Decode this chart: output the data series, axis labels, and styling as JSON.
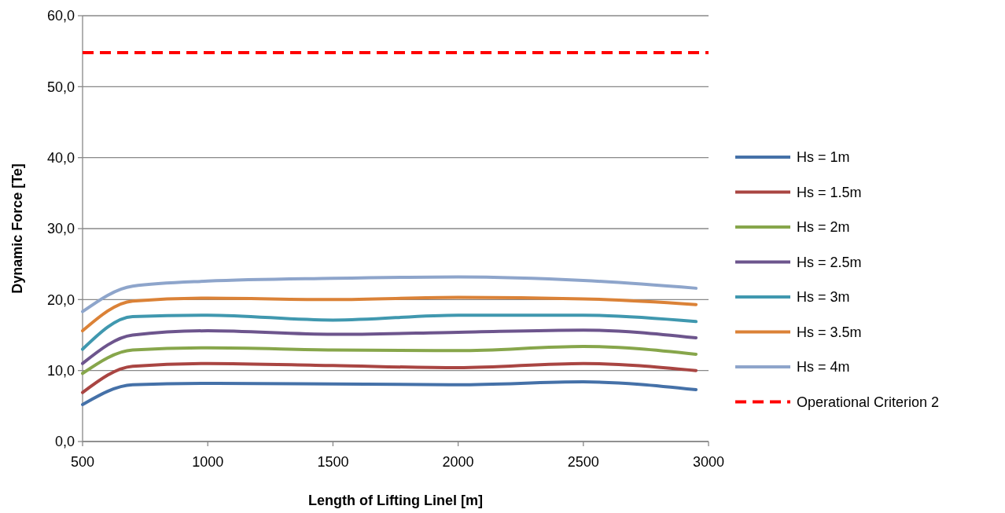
{
  "chart_data": {
    "type": "line",
    "xlabel": "Length of Lifting Linel [m]",
    "ylabel": "Dynamic Force [Te]",
    "x": [
      500,
      700,
      1000,
      1500,
      2000,
      2500,
      2950
    ],
    "xlim": [
      500,
      3000
    ],
    "xticks": [
      500,
      1000,
      1500,
      2000,
      2500,
      3000
    ],
    "ylim": [
      0,
      60
    ],
    "yticks": [
      {
        "value": 0,
        "label": "0,0"
      },
      {
        "value": 10,
        "label": "10,0"
      },
      {
        "value": 20,
        "label": "20,0"
      },
      {
        "value": 30,
        "label": "30,0"
      },
      {
        "value": 40,
        "label": "40,0"
      },
      {
        "value": 50,
        "label": "50,0"
      },
      {
        "value": 60,
        "label": "60,0"
      }
    ],
    "grid": "y",
    "legend": "right",
    "marker": "none",
    "line_style": "solid",
    "series": [
      {
        "name": "Hs = 1m",
        "color": "#4571a8",
        "values": [
          5.2,
          8.0,
          8.2,
          8.1,
          8.0,
          8.4,
          7.3
        ]
      },
      {
        "name": "Hs = 1.5m",
        "color": "#a94542",
        "values": [
          6.9,
          10.6,
          11.0,
          10.7,
          10.4,
          11.0,
          10.0
        ]
      },
      {
        "name": "Hs = 2m",
        "color": "#87a64b",
        "values": [
          9.6,
          12.9,
          13.2,
          12.9,
          12.8,
          13.4,
          12.3
        ]
      },
      {
        "name": "Hs = 2.5m",
        "color": "#6d558d",
        "values": [
          11.0,
          15.0,
          15.6,
          15.1,
          15.4,
          15.7,
          14.6
        ]
      },
      {
        "name": "Hs = 3m",
        "color": "#4098af",
        "values": [
          13.0,
          17.6,
          17.8,
          17.1,
          17.8,
          17.8,
          16.9
        ]
      },
      {
        "name": "Hs = 3.5m",
        "color": "#db8237",
        "values": [
          15.6,
          19.8,
          20.2,
          20.0,
          20.3,
          20.1,
          19.3
        ]
      },
      {
        "name": "Hs = 4m",
        "color": "#8ea5cb",
        "values": [
          18.3,
          21.9,
          22.6,
          23.0,
          23.2,
          22.7,
          21.6
        ]
      }
    ],
    "ref_lines": [
      {
        "axis": "y",
        "value": 54.8,
        "label": "Operational Criterion 2",
        "color": "#ff0000",
        "line_style": "dashed"
      }
    ]
  }
}
